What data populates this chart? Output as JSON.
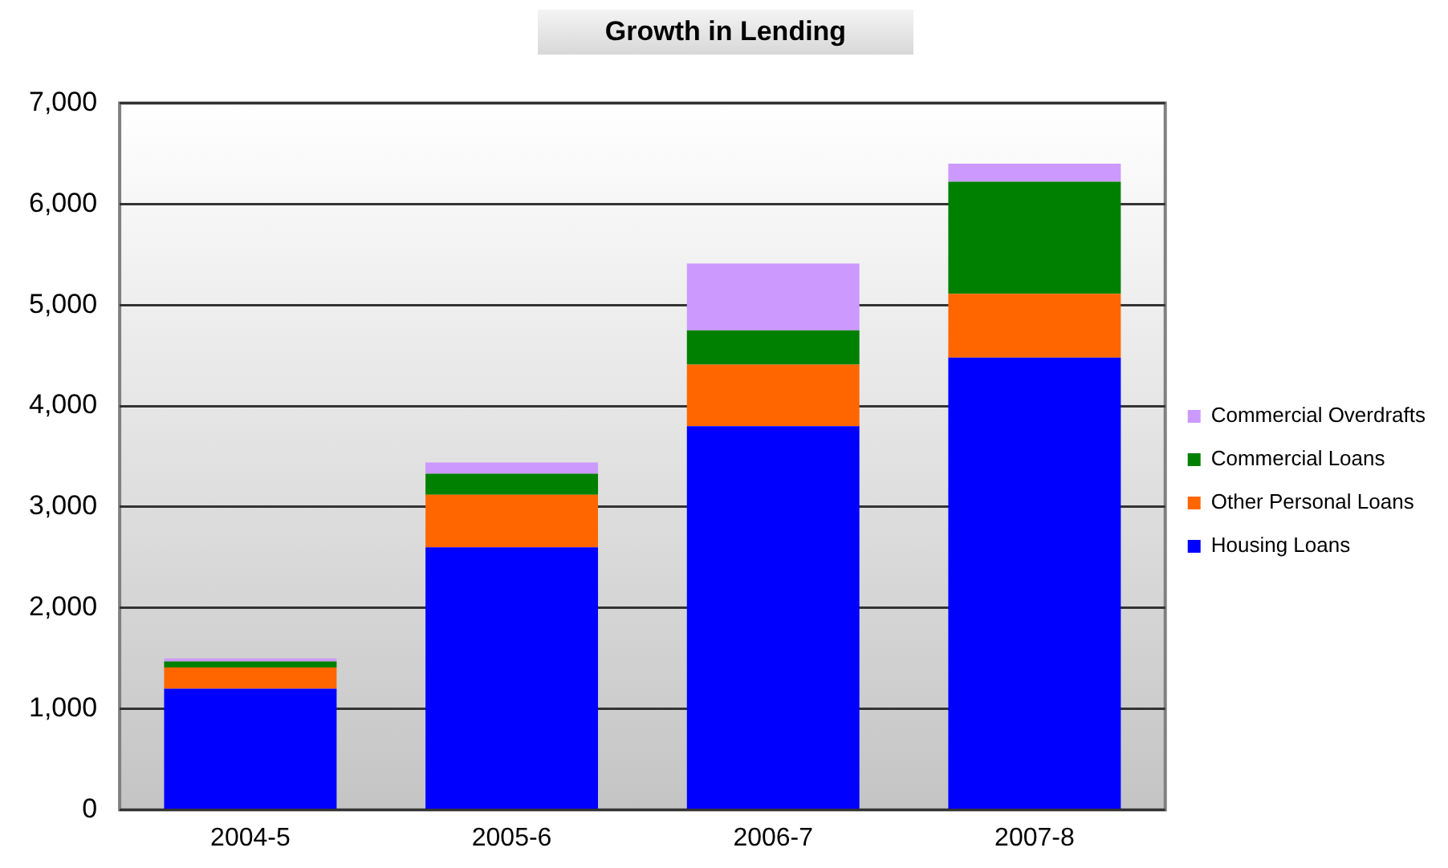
{
  "chart_data": {
    "type": "bar",
    "title": "Growth in Lending",
    "stacked": true,
    "categories": [
      "2004-5",
      "2005-6",
      "2006-7",
      "2007-8"
    ],
    "series": [
      {
        "name": "Housing Loans",
        "color": "#0000ff",
        "values": [
          1200,
          2600,
          3800,
          4480
        ]
      },
      {
        "name": "Other Personal Loans",
        "color": "#ff6600",
        "values": [
          210,
          520,
          610,
          630
        ]
      },
      {
        "name": "Commercial Loans",
        "color": "#008000",
        "values": [
          60,
          210,
          340,
          1110
        ]
      },
      {
        "name": "Commercial Overdrafts",
        "color": "#cc99ff",
        "values": [
          30,
          110,
          660,
          180
        ]
      }
    ],
    "ylim": [
      0,
      7000
    ],
    "yticks": [
      {
        "value": 0,
        "label": "0"
      },
      {
        "value": 1000,
        "label": "1,000"
      },
      {
        "value": 2000,
        "label": "2,000"
      },
      {
        "value": 3000,
        "label": "3,000"
      },
      {
        "value": 4000,
        "label": "4,000"
      },
      {
        "value": 5000,
        "label": "5,000"
      },
      {
        "value": 6000,
        "label": "6,000"
      },
      {
        "value": 7000,
        "label": "7,000"
      }
    ],
    "grid": "y",
    "legend": "right"
  }
}
